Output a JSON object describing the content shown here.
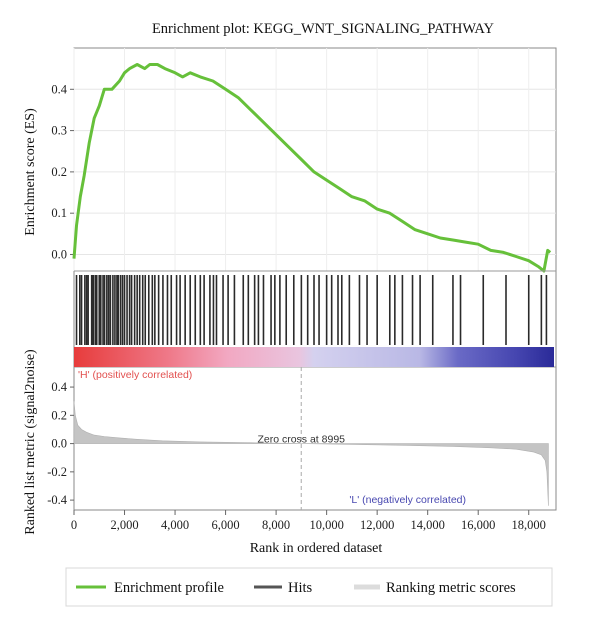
{
  "chart_data": {
    "type": "line",
    "title": "Enrichment plot: KEGG_WNT_SIGNALING_PATHWAY",
    "xlabel": "Rank in ordered dataset",
    "xlim": [
      0,
      19000
    ],
    "xticks": [
      "0",
      "2,000",
      "4,000",
      "6,000",
      "8,000",
      "10,000",
      "12,000",
      "14,000",
      "16,000",
      "18,000"
    ],
    "xtick_values": [
      0,
      2000,
      4000,
      6000,
      8000,
      10000,
      12000,
      14000,
      16000,
      18000
    ],
    "es_panel": {
      "ylabel": "Enrichment score (ES)",
      "ylim": [
        -0.04,
        0.5
      ],
      "yticks": [
        "0.0",
        "0.1",
        "0.2",
        "0.3",
        "0.4"
      ],
      "ytick_values": [
        0,
        0.1,
        0.2,
        0.3,
        0.4
      ],
      "grid": true,
      "series": [
        {
          "name": "Enrichment profile",
          "color": "#66c03a",
          "x": [
            0,
            100,
            250,
            400,
            600,
            800,
            1000,
            1200,
            1500,
            1800,
            2000,
            2200,
            2500,
            2800,
            3000,
            3300,
            3600,
            4000,
            4300,
            4600,
            5000,
            5500,
            6000,
            6500,
            7000,
            7500,
            8000,
            8500,
            9000,
            9500,
            10000,
            10500,
            11000,
            11500,
            12000,
            12500,
            13000,
            13500,
            14000,
            14500,
            15000,
            15500,
            16000,
            16500,
            17000,
            17500,
            18000,
            18400,
            18600,
            18750,
            18850
          ],
          "y": [
            -0.01,
            0.07,
            0.14,
            0.19,
            0.27,
            0.33,
            0.36,
            0.4,
            0.4,
            0.42,
            0.44,
            0.45,
            0.46,
            0.45,
            0.46,
            0.46,
            0.45,
            0.44,
            0.43,
            0.44,
            0.43,
            0.42,
            0.4,
            0.38,
            0.35,
            0.32,
            0.29,
            0.26,
            0.23,
            0.2,
            0.18,
            0.16,
            0.14,
            0.13,
            0.11,
            0.1,
            0.08,
            0.06,
            0.05,
            0.04,
            0.035,
            0.03,
            0.025,
            0.01,
            0.005,
            -0.005,
            -0.015,
            -0.03,
            -0.04,
            0.01,
            0.005
          ]
        }
      ]
    },
    "hits_panel": {
      "series_name": "Hits",
      "color": "#2a2a2a",
      "hit_positions": [
        100,
        230,
        300,
        430,
        500,
        560,
        700,
        760,
        840,
        900,
        1000,
        1060,
        1150,
        1210,
        1300,
        1370,
        1440,
        1540,
        1620,
        1700,
        1750,
        1840,
        1920,
        2000,
        2100,
        2200,
        2280,
        2400,
        2500,
        2600,
        2720,
        2820,
        2960,
        3100,
        3200,
        3350,
        3520,
        3700,
        3850,
        4060,
        4200,
        4400,
        4600,
        4800,
        5000,
        5150,
        5380,
        5520,
        5640,
        5900,
        6100,
        6350,
        6700,
        6900,
        7150,
        7300,
        7500,
        7800,
        7950,
        8150,
        8400,
        8700,
        9000,
        9250,
        9500,
        9700,
        10000,
        10200,
        10450,
        10600,
        10900,
        11300,
        11600,
        12000,
        12500,
        12700,
        13000,
        13400,
        13700,
        14200,
        15000,
        15300,
        16200,
        17100,
        18000,
        18500,
        18700
      ],
      "colorbar_low": "'H' (positively correlated)",
      "colorbar_high": "'L' (negatively correlated)",
      "colorbar_colors": [
        "#e73c3c",
        "#f2a0b4",
        "#c9c6eb",
        "#4a4ab6",
        "#2f2f9a"
      ]
    },
    "metric_panel": {
      "ylabel": "Ranked list metric (signal2noise)",
      "ylim": [
        -0.47,
        0.45
      ],
      "yticks": [
        "0.4",
        "0.2",
        "0.0",
        "-0.2",
        "-0.4"
      ],
      "ytick_values": [
        0.4,
        0.2,
        0,
        -0.2,
        -0.4
      ],
      "series_name": "Ranking metric scores",
      "color": "#b8b8b8",
      "x": [
        0,
        50,
        150,
        300,
        500,
        800,
        1200,
        1800,
        2500,
        3500,
        5000,
        7000,
        8995,
        11000,
        13000,
        15000,
        16500,
        17500,
        18200,
        18500,
        18650,
        18720,
        18780
      ],
      "y": [
        0.3,
        0.2,
        0.13,
        0.1,
        0.08,
        0.06,
        0.05,
        0.04,
        0.03,
        0.02,
        0.012,
        0.006,
        0,
        -0.006,
        -0.012,
        -0.02,
        -0.03,
        -0.04,
        -0.06,
        -0.08,
        -0.12,
        -0.2,
        -0.44
      ],
      "annotation": "Zero cross at 8995",
      "zero_cross": 8995
    },
    "legend": {
      "placement": "bottom",
      "items": [
        {
          "label": "Enrichment profile",
          "color": "#66c03a"
        },
        {
          "label": "Hits",
          "color": "#555555"
        },
        {
          "label": "Ranking metric scores",
          "color": "#dcdcdc"
        }
      ]
    }
  }
}
